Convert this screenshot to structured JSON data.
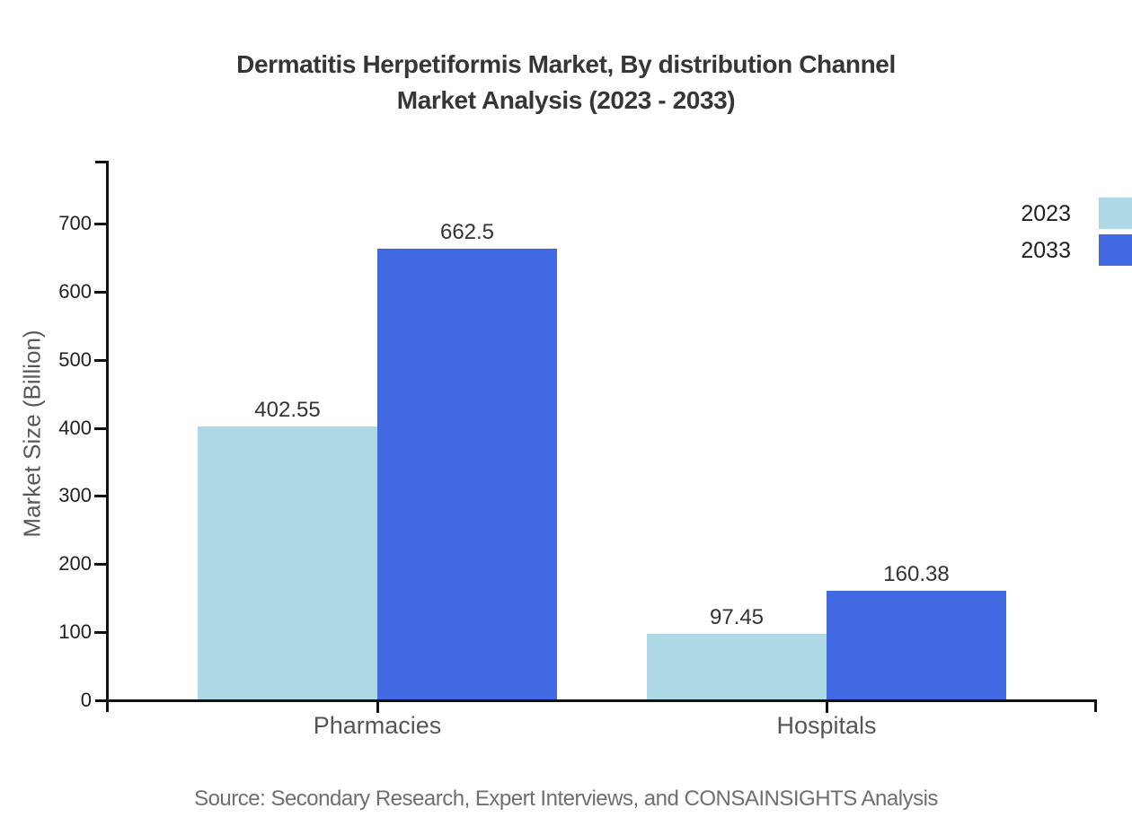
{
  "chart_data": {
    "type": "bar",
    "title_line1": "Dermatitis Herpetiformis Market, By distribution Channel",
    "title_line2": "Market Analysis (2023 - 2033)",
    "categories": [
      "Pharmacies",
      "Hospitals"
    ],
    "series": [
      {
        "name": "2023",
        "color": "#ADD8E6",
        "values": [
          402.55,
          97.45
        ]
      },
      {
        "name": "2033",
        "color": "#4169E1",
        "values": [
          662.5,
          160.38
        ]
      }
    ],
    "xlabel": "",
    "ylabel": "Market Size (Billion)",
    "yticks": [
      0,
      100,
      200,
      300,
      400,
      500,
      600,
      700
    ],
    "ylim": [
      0,
      790
    ],
    "grid": false,
    "legend_position": "top-right",
    "bar_value_labels": [
      "402.55",
      "662.5",
      "97.45",
      "160.38"
    ],
    "source": "Source: Secondary Research, Expert Interviews, and CONSAINSIGHTS Analysis"
  },
  "colors": {
    "series_2023": "#ADD8E6",
    "series_2033": "#4169E1",
    "axis": "#111111",
    "title_text": "#363636",
    "tick_text": "#1f1f1f",
    "category_text": "#565656",
    "value_text": "#333333",
    "source_text": "#6f6f6f",
    "background": "#ffffff"
  }
}
